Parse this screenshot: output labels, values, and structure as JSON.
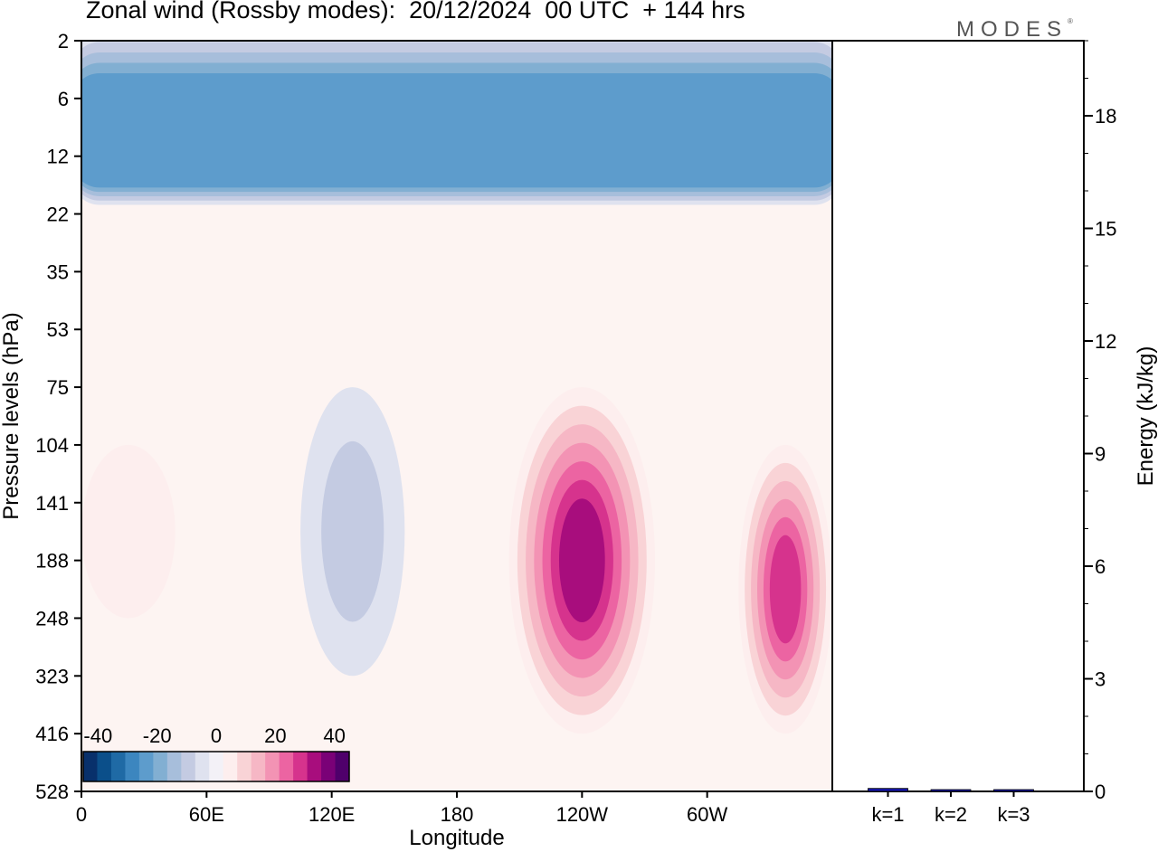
{
  "title": "Zonal wind (Rossby modes):  20/12/2024  00 UTC  + 144 hrs",
  "brand": {
    "name": "MODES",
    "mark": "®"
  },
  "colors": {
    "contour_scale": [
      "#08306b",
      "#0b4f8a",
      "#1f6aa5",
      "#3c86bf",
      "#5d9ccc",
      "#82afd2",
      "#a7bedb",
      "#c4cbe2",
      "#dfe2ef",
      "#f3f1f7",
      "#fdeeee",
      "#f9d3d6",
      "#f6b7c5",
      "#f393b4",
      "#ec64a2",
      "#d6338d",
      "#a80d7d",
      "#7a0177",
      "#4f006b"
    ],
    "bar_color": "#1515a8"
  },
  "chart_data": [
    {
      "type": "heatmap",
      "title": "Zonal wind (Rossby modes):  20/12/2024  00 UTC  + 144 hrs",
      "xlabel": "Longitude",
      "ylabel": "Pressure levels (hPa)",
      "x_ticks": [
        "0",
        "60E",
        "120E",
        "180",
        "120W",
        "60W"
      ],
      "x_tick_values": [
        0,
        60,
        120,
        180,
        240,
        300
      ],
      "xlim": [
        0,
        360
      ],
      "y_ticks": [
        "2",
        "6",
        "12",
        "22",
        "35",
        "53",
        "75",
        "104",
        "141",
        "188",
        "248",
        "323",
        "416",
        "528"
      ],
      "y_axis_inverted": true,
      "colorbar": {
        "ticks": [
          "-40",
          "-20",
          "0",
          "20",
          "40"
        ],
        "range": [
          -45,
          45
        ],
        "location": "lower-left"
      },
      "features": [
        {
          "type": "easterly_band",
          "lon_range": [
            0,
            360
          ],
          "pressure_range": [
            "2",
            "22"
          ],
          "value": -25
        },
        {
          "type": "jet_core",
          "lon_range": [
            0,
            45
          ],
          "pressure_range": [
            "104",
            "248"
          ],
          "value": 6
        },
        {
          "type": "jet_core",
          "lon_range": [
            105,
            155
          ],
          "pressure_range": [
            "75",
            "323"
          ],
          "value": -9
        },
        {
          "type": "jet_core",
          "lon_range": [
            205,
            275
          ],
          "pressure_range": [
            "75",
            "416"
          ],
          "value": 36
        },
        {
          "type": "jet_core",
          "lon_range": [
            315,
            360
          ],
          "pressure_range": [
            "104",
            "416"
          ],
          "value": 30
        }
      ]
    },
    {
      "type": "bar",
      "categories": [
        "k=1",
        "k=2",
        "k=3"
      ],
      "values": [
        0.08,
        0.02,
        0.01
      ],
      "ylabel": "Energy (kJ/kg)",
      "ylim": [
        0,
        20
      ],
      "y_ticks": [
        "0",
        "3",
        "6",
        "9",
        "12",
        "15",
        "18"
      ]
    }
  ]
}
